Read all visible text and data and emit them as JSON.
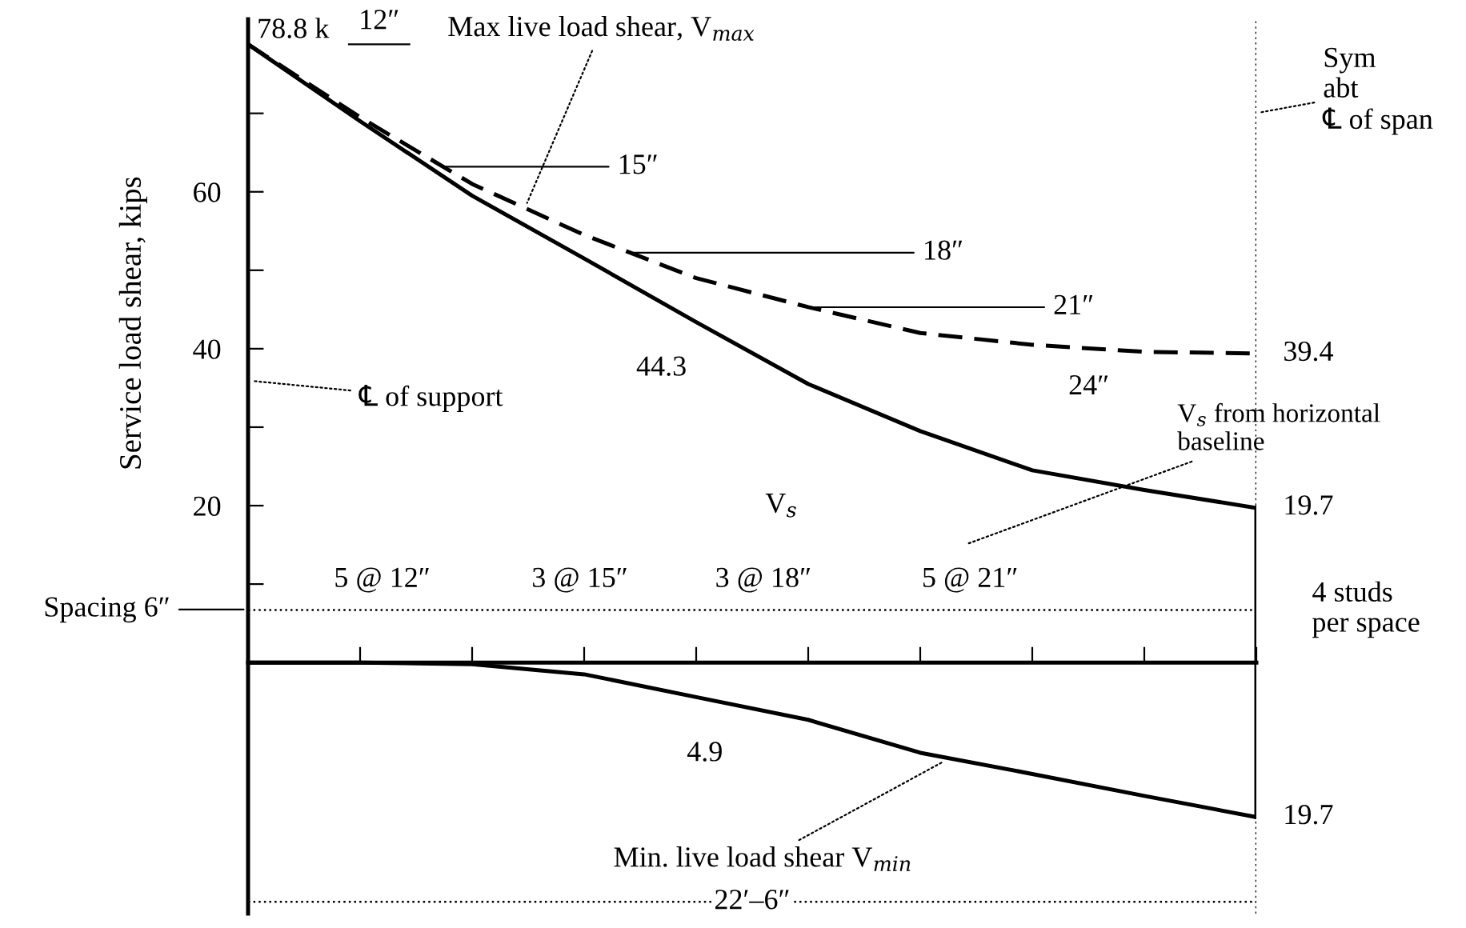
{
  "chart_data": {
    "type": "line",
    "ylabel": "Service load shear, kips",
    "categories": [
      null,
      null,
      null,
      null,
      null,
      null,
      null,
      null,
      null,
      null
    ],
    "ylim": [
      -32,
      82
    ],
    "yticks": [
      {
        "value": 10,
        "label": null
      },
      20,
      {
        "value": 30,
        "label": null
      },
      40,
      {
        "value": 50,
        "label": null
      },
      60,
      {
        "value": 70,
        "label": null
      }
    ],
    "grid": false,
    "legend": false,
    "marker": "none",
    "series": [
      {
        "color": "#000000",
        "line_style": "solid",
        "values": [
          78.8,
          69,
          59.5,
          51.5,
          43.4,
          35.5,
          29.5,
          24.5,
          22,
          19.7
        ]
      },
      {
        "color": "#000000",
        "line_style": "dashed",
        "values": [
          78.8,
          69.5,
          61,
          54.5,
          49,
          45.3,
          42,
          40.5,
          39.6,
          39.4
        ]
      },
      {
        "color": "#000000",
        "line_style": "solid",
        "values": [
          0,
          0,
          -0.2,
          -1.5,
          -4.4,
          -7.3,
          -11.5,
          -14.2,
          -17,
          -19.7
        ]
      }
    ],
    "ref_lines": [
      {
        "axis": "y",
        "value": 6.7,
        "line_style": "dotted",
        "color": "#000000"
      },
      {
        "axis": "y",
        "value": -30.5,
        "line_style": "dotted",
        "color": "#000000"
      }
    ],
    "annotations": [
      "78.8 k",
      "12″",
      "15″",
      "18″",
      "21″",
      "24″",
      "39.4",
      "44.3",
      "19.7",
      "19.7",
      "4.9",
      "Max live load shear, V$_{max}$",
      "Min. live load shear V$_{min}$",
      "V$_{s}$ from horizontal\nbaseline",
      "V$_{s}$",
      "℄ of support",
      "Sym\nabt\n℄ of span",
      "Spacing 6″",
      "5 @ 12″",
      "3 @ 15″",
      "3 @ 18″",
      "5 @ 21″",
      "4 studs\nper space",
      "22′–6″"
    ]
  }
}
